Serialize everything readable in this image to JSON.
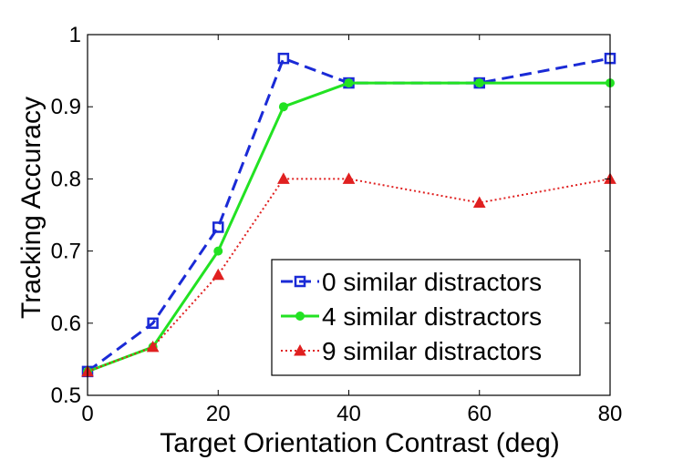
{
  "chart_data": {
    "type": "line",
    "xlabel": "Target Orientation Contrast (deg)",
    "ylabel": "Tracking Accuracy",
    "xlim": [
      0,
      80
    ],
    "ylim": [
      0.5,
      1
    ],
    "xticks": [
      0,
      20,
      40,
      60,
      80
    ],
    "yticks": [
      0.5,
      0.6,
      0.7,
      0.8,
      0.9,
      1
    ],
    "xtick_labels": [
      "0",
      "20",
      "40",
      "60",
      "80"
    ],
    "ytick_labels": [
      "0.5",
      "0.6",
      "0.7",
      "0.8",
      "0.9",
      "1"
    ],
    "grid": false,
    "legend_position": "bottom-right",
    "series": [
      {
        "name": "0 similar distractors",
        "color": "#1a2ad6",
        "line_style": "dashed",
        "marker": "square",
        "x": [
          0,
          10,
          20,
          30,
          40,
          60,
          80
        ],
        "y": [
          0.533,
          0.6,
          0.733,
          0.967,
          0.933,
          0.933,
          0.967
        ]
      },
      {
        "name": "4 similar distractors",
        "color": "#22e222",
        "line_style": "solid",
        "marker": "circle",
        "x": [
          0,
          10,
          20,
          30,
          40,
          60,
          80
        ],
        "y": [
          0.533,
          0.567,
          0.7,
          0.9,
          0.933,
          0.933,
          0.933
        ]
      },
      {
        "name": "9 similar distractors",
        "color": "#e02020",
        "line_style": "dotted",
        "marker": "triangle",
        "x": [
          0,
          10,
          20,
          30,
          40,
          60,
          80
        ],
        "y": [
          0.533,
          0.567,
          0.667,
          0.8,
          0.8,
          0.767,
          0.8
        ]
      }
    ]
  }
}
